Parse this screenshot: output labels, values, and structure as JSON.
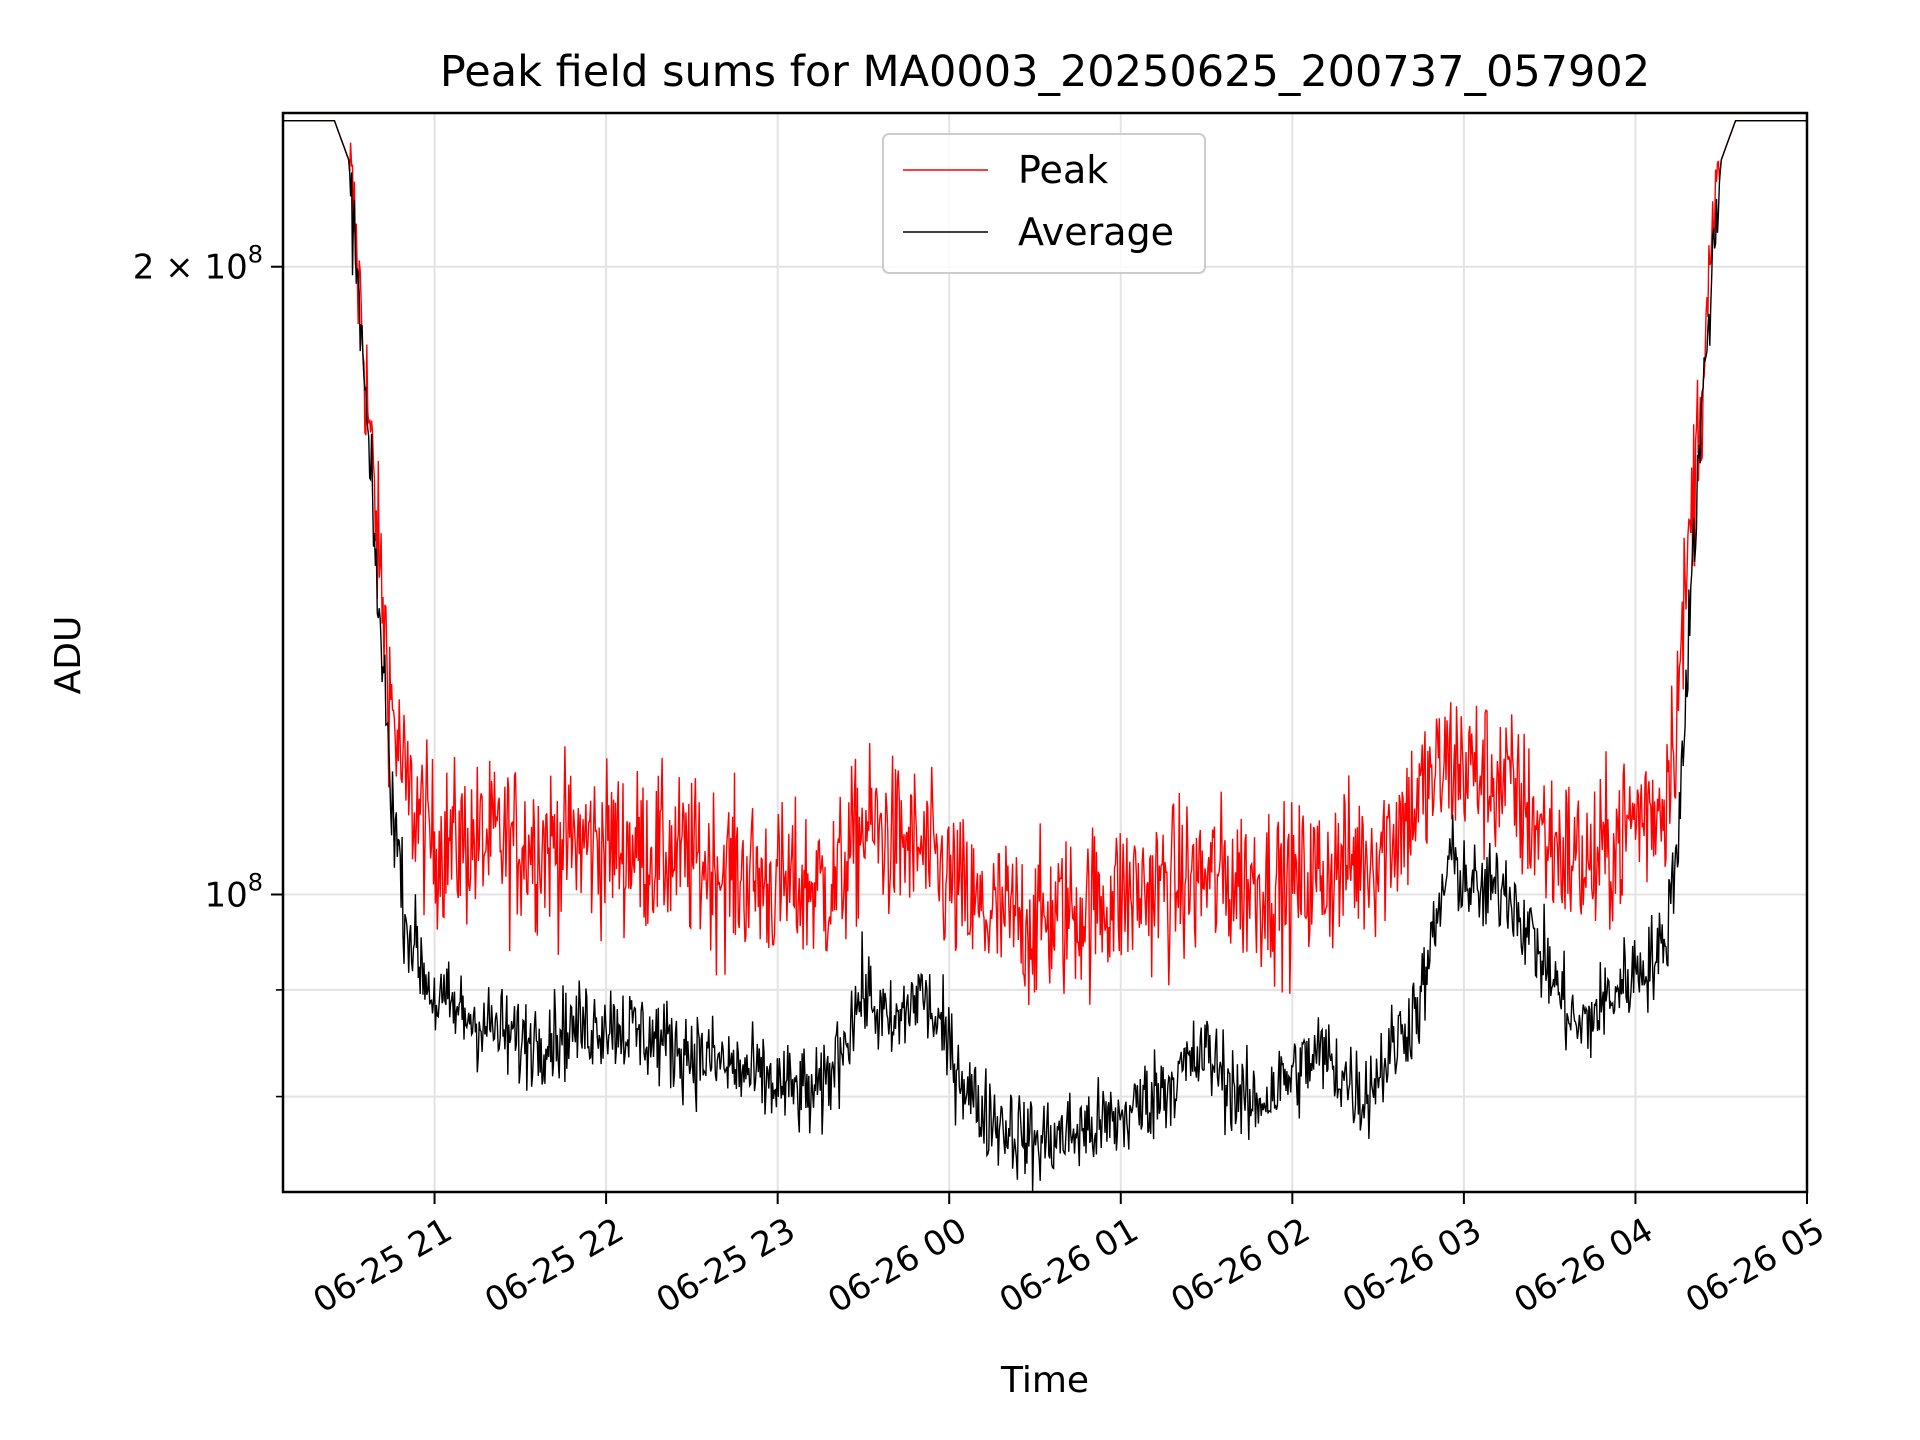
{
  "chart_data": {
    "type": "line",
    "title": "Peak field sums for MA0003_20250625_200737_057902",
    "xlabel": "Time",
    "ylabel": "ADU",
    "y_scale": "log",
    "grid": true,
    "legend_position": "top-center",
    "x_range": [
      "2025-06-25 20:07",
      "2025-06-26 05:00"
    ],
    "ylim": [
      72000000,
      237000000
    ],
    "x_ticks": [
      {
        "time": "2025-06-25 21:00",
        "label": "06-25 21"
      },
      {
        "time": "2025-06-25 22:00",
        "label": "06-25 22"
      },
      {
        "time": "2025-06-25 23:00",
        "label": "06-25 23"
      },
      {
        "time": "2025-06-26 00:00",
        "label": "06-26 00"
      },
      {
        "time": "2025-06-26 01:00",
        "label": "06-26 01"
      },
      {
        "time": "2025-06-26 02:00",
        "label": "06-26 02"
      },
      {
        "time": "2025-06-26 03:00",
        "label": "06-26 03"
      },
      {
        "time": "2025-06-26 04:00",
        "label": "06-26 04"
      },
      {
        "time": "2025-06-26 05:00",
        "label": "06-26 05"
      }
    ],
    "y_ticks": [
      {
        "value": 200000000,
        "label": "2×10⁸",
        "base": "2 × 10",
        "exp": "8"
      },
      {
        "value": 100000000,
        "label": "10⁸",
        "base": "10",
        "exp": "8"
      }
    ],
    "y_minor_ticks": [
      80000000,
      90000000
    ],
    "series": [
      {
        "name": "Peak",
        "color": "#ff0000",
        "noise": 0.045,
        "points": [
          [
            "2025-06-25 20:07",
            235000000
          ],
          [
            "2025-06-25 20:25",
            235000000
          ],
          [
            "2025-06-25 20:30",
            225000000
          ],
          [
            "2025-06-25 20:35",
            185000000
          ],
          [
            "2025-06-25 20:40",
            148000000
          ],
          [
            "2025-06-25 20:45",
            123000000
          ],
          [
            "2025-06-25 20:50",
            112000000
          ],
          [
            "2025-06-25 21:00",
            106000000
          ],
          [
            "2025-06-25 21:30",
            106000000
          ],
          [
            "2025-06-25 22:00",
            106000000
          ],
          [
            "2025-06-25 22:30",
            104000000
          ],
          [
            "2025-06-25 23:00",
            101000000
          ],
          [
            "2025-06-25 23:20",
            101000000
          ],
          [
            "2025-06-25 23:30",
            108000000
          ],
          [
            "2025-06-25 23:50",
            105000000
          ],
          [
            "2025-06-26 00:10",
            98000000
          ],
          [
            "2025-06-26 00:30",
            97000000
          ],
          [
            "2025-06-26 01:00",
            100000000
          ],
          [
            "2025-06-26 01:30",
            102000000
          ],
          [
            "2025-06-26 02:00",
            101000000
          ],
          [
            "2025-06-26 02:30",
            105000000
          ],
          [
            "2025-06-26 02:55",
            116000000
          ],
          [
            "2025-06-26 03:15",
            113000000
          ],
          [
            "2025-06-26 03:30",
            106000000
          ],
          [
            "2025-06-26 03:45",
            103000000
          ],
          [
            "2025-06-26 04:00",
            109000000
          ],
          [
            "2025-06-26 04:10",
            111000000
          ],
          [
            "2025-06-26 04:15",
            125000000
          ],
          [
            "2025-06-26 04:20",
            155000000
          ],
          [
            "2025-06-26 04:25",
            190000000
          ],
          [
            "2025-06-26 04:30",
            225000000
          ],
          [
            "2025-06-26 04:35",
            235000000
          ],
          [
            "2025-06-26 05:00",
            235000000
          ]
        ]
      },
      {
        "name": "Average",
        "color": "#000000",
        "noise": 0.025,
        "points": [
          [
            "2025-06-25 20:07",
            235000000
          ],
          [
            "2025-06-25 20:25",
            235000000
          ],
          [
            "2025-06-25 20:30",
            225000000
          ],
          [
            "2025-06-25 20:35",
            180000000
          ],
          [
            "2025-06-25 20:40",
            140000000
          ],
          [
            "2025-06-25 20:45",
            112000000
          ],
          [
            "2025-06-25 20:50",
            97000000
          ],
          [
            "2025-06-25 21:00",
            89000000
          ],
          [
            "2025-06-25 21:30",
            85000000
          ],
          [
            "2025-06-25 22:00",
            87000000
          ],
          [
            "2025-06-25 22:30",
            84000000
          ],
          [
            "2025-06-25 23:00",
            81000000
          ],
          [
            "2025-06-25 23:15",
            80000000
          ],
          [
            "2025-06-25 23:30",
            90000000
          ],
          [
            "2025-06-25 23:40",
            86000000
          ],
          [
            "2025-06-25 23:50",
            90000000
          ],
          [
            "2025-06-26 00:10",
            79000000
          ],
          [
            "2025-06-26 00:30",
            76000000
          ],
          [
            "2025-06-26 01:00",
            78000000
          ],
          [
            "2025-06-26 01:30",
            84000000
          ],
          [
            "2025-06-26 01:45",
            79000000
          ],
          [
            "2025-06-26 02:10",
            84000000
          ],
          [
            "2025-06-26 02:25",
            80000000
          ],
          [
            "2025-06-26 02:45",
            89000000
          ],
          [
            "2025-06-26 02:55",
            104000000
          ],
          [
            "2025-06-26 03:05",
            100000000
          ],
          [
            "2025-06-26 03:15",
            101000000
          ],
          [
            "2025-06-26 03:40",
            86000000
          ],
          [
            "2025-06-26 04:00",
            92000000
          ],
          [
            "2025-06-26 04:10",
            94000000
          ],
          [
            "2025-06-26 04:15",
            107000000
          ],
          [
            "2025-06-26 04:20",
            145000000
          ],
          [
            "2025-06-26 04:25",
            185000000
          ],
          [
            "2025-06-26 04:30",
            225000000
          ],
          [
            "2025-06-26 04:35",
            235000000
          ],
          [
            "2025-06-26 05:00",
            235000000
          ]
        ]
      }
    ]
  }
}
